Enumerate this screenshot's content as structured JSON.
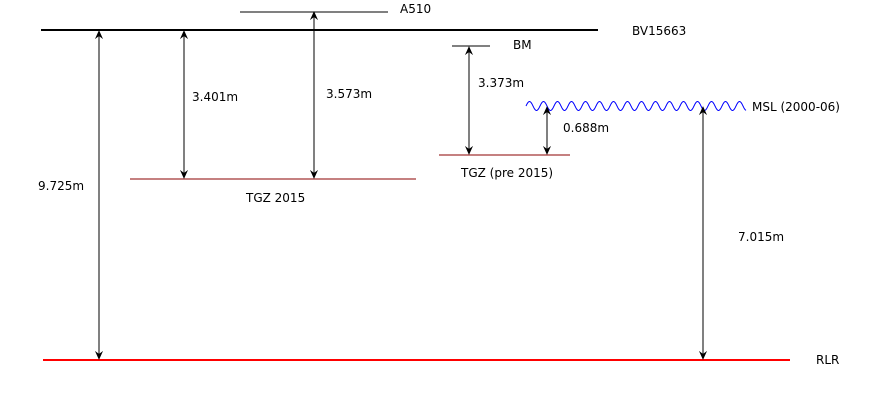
{
  "labels": {
    "a510": "A510",
    "bv": "BV15663",
    "bm": "BM",
    "msl": "MSL (2000-06)",
    "tgz2015": "TGZ 2015",
    "tgz_pre": "TGZ (pre 2015)",
    "rlr": "RLR"
  },
  "measurements": {
    "d_rlr_bv": "9.725m",
    "d_tgz2015_bv": "3.401m",
    "d_tgz2015_a510": "3.573m",
    "d_tgzpre_bm": "3.373m",
    "d_tgzpre_msl": "0.688m",
    "d_rlr_msl": "7.015m"
  },
  "colors": {
    "benchmark_line": "#000000",
    "tide_gauge_line": "#8b0000",
    "rlr_line": "#ff0000",
    "msl_wave": "#0000ff"
  }
}
